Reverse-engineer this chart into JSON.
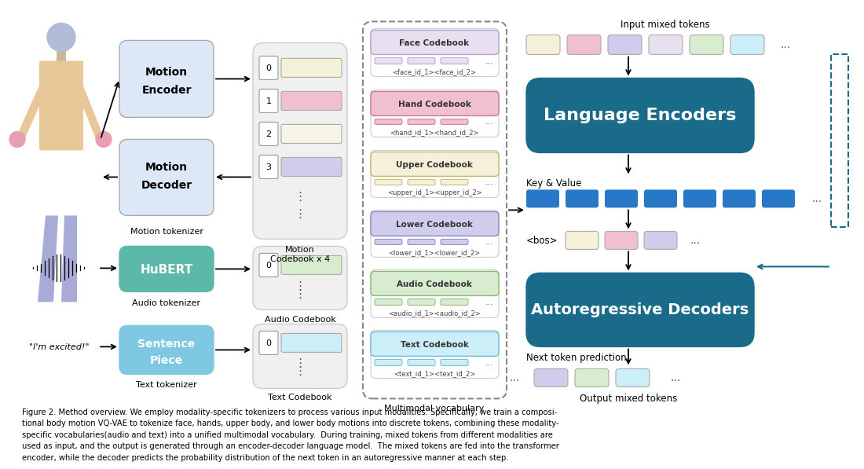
{
  "bg_color": "#ffffff",
  "teal_color": "#1a6b8a",
  "face_color": "#e8e0f0",
  "face_edge": "#b0a0d0",
  "hand_color": "#f0c0d0",
  "hand_edge": "#c87898",
  "upper_color": "#f5f0d8",
  "upper_edge": "#c0b870",
  "lower_color": "#d0ccec",
  "lower_edge": "#8888c0",
  "audio_color": "#d8ecd0",
  "audio_edge": "#88b878",
  "text_color_cb": "#cceef8",
  "text_edge": "#70b8d8",
  "motion_enc_color": "#dce8f5",
  "hubert_color": "#5cb8a8",
  "sentpiece_color": "#7ec8e3",
  "blue_token_color": "#2878c8",
  "caption": "Figure 2. Method overview. We employ modality-specific tokenizers to process various input modalities. Specifically, we train a composi-\ntional body motion VQ-VAE to tokenize face, hands, upper body, and lower body motions into discrete tokens, combining these modality-\nspecific vocabularies(audio and text) into a unified multimodal vocabulary.  During training, mixed tokens from different modalities are\nused as input, and the output is generated through an encoder-decoder language model.  The mixed tokens are fed into the transformer\nencoder, while the decoder predicts the probability distribution of the next token in an autoregressive manner at each step."
}
